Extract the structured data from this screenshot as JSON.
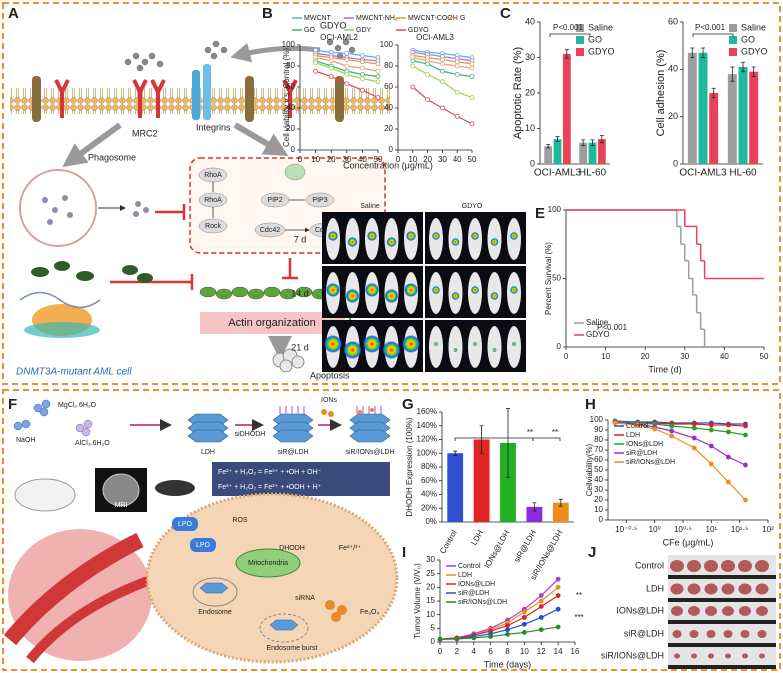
{
  "panel_labels": [
    "A",
    "B",
    "C",
    "D",
    "E",
    "F",
    "G",
    "H",
    "I",
    "J"
  ],
  "panel_a": {
    "gdyo": "GDYO",
    "mrc2": "MRC2",
    "integrins": "Integrins",
    "phagosome": "Phagosome",
    "rhoa": "RhoA",
    "rock": "Rock",
    "cdc42": "Cdc42",
    "pip2": "PIP2",
    "pip3": "PIP3",
    "actin": "Actin organization",
    "apoptosis": "Apoptosis",
    "cell": "DNMT3A-mutant AML cell"
  },
  "panel_d": {
    "columns": [
      "Saline",
      "GDYO"
    ],
    "rows": [
      "7 d",
      "14 d",
      "21 d"
    ]
  },
  "panel_f": {
    "reagents": [
      "MgCl₂.6H₂O",
      "NaOH",
      "AlCl₃.6H₂O"
    ],
    "products": [
      "LDH",
      "siR@LDH",
      "siR/IONs@LDH"
    ],
    "steps": [
      "siDHODH",
      "IONs"
    ],
    "mri": "MRI",
    "equations": [
      "Fe²⁺ + H₂O₂ = Fe³⁺ + •OH + OH⁻",
      "Fe³⁺ + H₂O₂ = Fe²⁺ + •OOH + H⁺"
    ],
    "lpo": "LPO",
    "ros": "ROS",
    "dhodh": "DHODH",
    "mitochondria": "Mitochondria",
    "endosome": "Endosome",
    "endosome_burst": "Endosome burst",
    "sirna": "siRNA",
    "fe3o4": "Fe₃O₄",
    "fe_ions": "Fe²⁺/³⁺"
  },
  "panel_j": {
    "rows": [
      "Control",
      "LDH",
      "IONs@LDH",
      "siR@LDH",
      "siR/IONs@LDH"
    ]
  },
  "chart_data": [
    {
      "type": "line",
      "title": "OCI-AML2",
      "y_label": "Cell viability v.s. Control (%)",
      "x_label": "Concentration (μg/mL)",
      "x": [
        10,
        20,
        30,
        40,
        50
      ],
      "xlim": [
        0,
        50
      ],
      "xticks": [
        0,
        10,
        20,
        30,
        40,
        50
      ],
      "ylim": [
        0,
        100
      ],
      "yticks": [
        0,
        20,
        40,
        60,
        80,
        100
      ],
      "legend": "top",
      "series": [
        {
          "name": "MWCNT",
          "color": "#4fb3e8",
          "values": [
            95,
            93,
            92,
            90,
            88
          ]
        },
        {
          "name": "MWCNT-NH₂",
          "color": "#b36ad6",
          "values": [
            92,
            90,
            88,
            86,
            85
          ]
        },
        {
          "name": "MWCNT-COOH",
          "color": "#c7a043",
          "values": [
            90,
            88,
            86,
            84,
            82
          ]
        },
        {
          "name": "G",
          "color": "#f29a7a",
          "values": [
            88,
            85,
            80,
            78,
            75
          ]
        },
        {
          "name": "GO",
          "color": "#3cb371",
          "values": [
            85,
            80,
            75,
            72,
            70
          ]
        },
        {
          "name": "GDY",
          "color": "#9ad14b",
          "values": [
            83,
            78,
            72,
            68,
            65
          ]
        },
        {
          "name": "GDYO",
          "color": "#e0455a",
          "values": [
            75,
            70,
            63,
            57,
            50
          ]
        }
      ]
    },
    {
      "type": "line",
      "title": "OCI-AML3",
      "x": [
        10,
        20,
        30,
        40,
        50
      ],
      "xlim": [
        0,
        50
      ],
      "xticks": [
        0,
        10,
        20,
        30,
        40,
        50
      ],
      "ylim": [
        0,
        100
      ],
      "yticks": [
        0,
        20,
        40,
        60,
        80,
        100
      ],
      "series": [
        {
          "color": "#4fb3e8",
          "values": [
            95,
            93,
            92,
            90,
            88
          ]
        },
        {
          "color": "#b36ad6",
          "values": [
            93,
            91,
            89,
            87,
            85
          ]
        },
        {
          "color": "#c7a043",
          "values": [
            90,
            88,
            86,
            84,
            82
          ]
        },
        {
          "color": "#f29a7a",
          "values": [
            88,
            85,
            82,
            80,
            78
          ]
        },
        {
          "color": "#3cb371",
          "values": [
            85,
            82,
            75,
            72,
            70
          ]
        },
        {
          "color": "#9ad14b",
          "values": [
            80,
            72,
            65,
            55,
            50
          ]
        },
        {
          "color": "#e0455a",
          "values": [
            60,
            48,
            40,
            32,
            25
          ]
        }
      ]
    },
    {
      "type": "bar",
      "y_label": "Apoptotic Rate (%)",
      "categories": [
        "OCI-AML3",
        "HL-60"
      ],
      "ylim": [
        0,
        40
      ],
      "yticks": [
        0,
        10,
        20,
        30,
        40
      ],
      "legend": "upper right",
      "annotations": [
        "P<0.001"
      ],
      "series": [
        {
          "name": "Saline",
          "color": "#9e9e9e",
          "values": [
            5,
            6
          ],
          "errors": [
            0.5,
            0.8
          ]
        },
        {
          "name": "GO",
          "color": "#1fb89a",
          "values": [
            7,
            6
          ],
          "errors": [
            0.7,
            0.8
          ]
        },
        {
          "name": "GDYO",
          "color": "#e8435a",
          "values": [
            31,
            7
          ],
          "errors": [
            1.2,
            1
          ]
        }
      ]
    },
    {
      "type": "bar",
      "y_label": "Cell adhesion (%)",
      "categories": [
        "OCI-AML3",
        "HL-60"
      ],
      "ylim": [
        0,
        60
      ],
      "yticks": [
        0,
        20,
        40,
        60
      ],
      "legend": "upper right",
      "annotations": [
        "P<0.001"
      ],
      "series": [
        {
          "name": "Saline",
          "color": "#9e9e9e",
          "values": [
            47,
            38
          ],
          "errors": [
            2,
            3
          ]
        },
        {
          "name": "GO",
          "color": "#1fb89a",
          "values": [
            47,
            41
          ],
          "errors": [
            2,
            2
          ]
        },
        {
          "name": "GDYO",
          "color": "#e8435a",
          "values": [
            30,
            39
          ],
          "errors": [
            2,
            2
          ]
        }
      ]
    },
    {
      "type": "step",
      "y_label": "Percent Survival (%)",
      "x_label": "Time (d)",
      "xlim": [
        0,
        50
      ],
      "xticks": [
        0,
        10,
        20,
        30,
        40,
        50
      ],
      "ylim": [
        0,
        100
      ],
      "yticks": [
        0,
        50,
        100
      ],
      "legend": "lower left",
      "annotations": [
        "P<0.001"
      ],
      "series": [
        {
          "name": "Saline",
          "color": "#9e9e9e",
          "x": [
            0,
            28,
            29,
            30,
            31,
            32,
            33,
            34,
            35
          ],
          "values": [
            100,
            88,
            75,
            63,
            50,
            38,
            25,
            13,
            0
          ]
        },
        {
          "name": "GDYO",
          "color": "#e8435a",
          "x": [
            0,
            30,
            33,
            34,
            35,
            50
          ],
          "values": [
            100,
            88,
            75,
            63,
            50,
            50
          ]
        }
      ]
    },
    {
      "type": "bar",
      "y_label": "DHODH Expression (100%)",
      "categories": [
        "Control",
        "LDH",
        "IONs@LDH",
        "siR@LDH",
        "siR/IONs@LDH"
      ],
      "values": [
        100,
        120,
        115,
        22,
        28
      ],
      "errors": [
        3,
        20,
        50,
        6,
        5
      ],
      "colors": [
        "#2f4fd0",
        "#e02424",
        "#22b022",
        "#8a2be2",
        "#f08c1c"
      ],
      "ylim": [
        0,
        160
      ],
      "yticks": [
        {
          "value": 0,
          "label": "0%"
        },
        {
          "value": 20,
          "label": "20%"
        },
        {
          "value": 40,
          "label": "40%"
        },
        {
          "value": 60,
          "label": "60%"
        },
        {
          "value": 80,
          "label": "80%"
        },
        {
          "value": 100,
          "label": "100%"
        },
        {
          "value": 120,
          "label": "120%"
        },
        {
          "value": 140,
          "label": "140%"
        },
        {
          "value": 160,
          "label": "160%"
        }
      ],
      "annotations": [
        "**",
        "**"
      ]
    },
    {
      "type": "line",
      "y_label": "Cellviability(%)",
      "x_label": "CFe (μg/mL)",
      "xlog": true,
      "xlim": [
        0.15,
        100
      ],
      "xticks": [
        {
          "value": 0.316,
          "label": "10⁻⁰·⁵"
        },
        {
          "value": 1,
          "label": "10⁰"
        },
        {
          "value": 3.16,
          "label": "10⁰·⁵"
        },
        {
          "value": 10,
          "label": "10¹"
        },
        {
          "value": 31.6,
          "label": "10¹·⁵"
        },
        {
          "value": 100,
          "label": "10²"
        }
      ],
      "ylim": [
        0,
        100
      ],
      "yticks": [
        0,
        10,
        20,
        30,
        40,
        50,
        60,
        70,
        80,
        90,
        100
      ],
      "legend": "upper left",
      "x": [
        0.2,
        0.5,
        1,
        2,
        5,
        10,
        20,
        40
      ],
      "series": [
        {
          "name": "Control",
          "color": "#1f4fd8",
          "values": [
            99,
            98,
            98,
            97,
            97,
            97,
            96,
            96
          ]
        },
        {
          "name": "LDH",
          "color": "#e02020",
          "values": [
            98,
            97,
            97,
            96,
            96,
            95,
            95,
            94
          ]
        },
        {
          "name": "IONs@LDH",
          "color": "#2aa02a",
          "values": [
            99,
            97,
            96,
            94,
            92,
            90,
            88,
            85
          ]
        },
        {
          "name": "siR@LDH",
          "color": "#9b30c8",
          "values": [
            98,
            96,
            93,
            89,
            82,
            74,
            63,
            55
          ]
        },
        {
          "name": "siR/IONs@LDH",
          "color": "#f08c1c",
          "values": [
            97,
            95,
            91,
            84,
            72,
            56,
            38,
            20
          ]
        }
      ]
    },
    {
      "type": "line",
      "y_label": "Tumor Volume (V/V₀)",
      "x_label": "Time (days)",
      "xlim": [
        0,
        16
      ],
      "xticks": [
        0,
        2,
        4,
        6,
        8,
        10,
        12,
        14,
        16
      ],
      "ylim": [
        0,
        30
      ],
      "yticks": [
        0,
        5,
        10,
        15,
        20,
        25,
        30
      ],
      "legend": "upper left",
      "annotations": [
        "**",
        "***"
      ],
      "x": [
        0,
        2,
        4,
        6,
        8,
        10,
        12,
        14
      ],
      "series": [
        {
          "name": "Control",
          "color": "#b03cd0",
          "values": [
            1,
            1.5,
            3,
            5,
            8,
            12,
            17,
            23
          ]
        },
        {
          "name": "LDH",
          "color": "#f08c1c",
          "values": [
            1,
            1.5,
            2.5,
            4.5,
            7,
            11,
            15,
            20
          ]
        },
        {
          "name": "IONs@LDH",
          "color": "#e02020",
          "values": [
            1,
            1.5,
            2.5,
            4,
            6,
            9,
            13,
            17
          ]
        },
        {
          "name": "siR@LDH",
          "color": "#1f4fd8",
          "values": [
            1,
            1.2,
            2,
            3,
            4.5,
            6.5,
            9,
            12
          ]
        },
        {
          "name": "siR/IONs@LDH",
          "color": "#2a8a2a",
          "values": [
            1,
            1.1,
            1.5,
            2,
            2.8,
            3.5,
            4.5,
            5.5
          ]
        }
      ]
    }
  ]
}
